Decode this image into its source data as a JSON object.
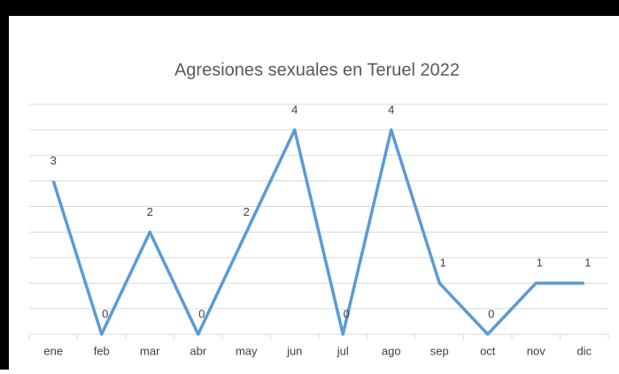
{
  "chart_data": {
    "type": "line",
    "title": "Agresiones sexuales en Teruel 2022",
    "categories": [
      "ene",
      "feb",
      "mar",
      "abr",
      "may",
      "jun",
      "jul",
      "ago",
      "sep",
      "oct",
      "nov",
      "dic"
    ],
    "series": [
      {
        "name": "Agresiones",
        "color": "#5b9bd5",
        "values": [
          3,
          0,
          2,
          0,
          2,
          4,
          0,
          4,
          1,
          0,
          1,
          1
        ]
      }
    ],
    "ylim": [
      0,
      4.5
    ],
    "yticks": [
      0,
      0.5,
      1,
      1.5,
      2,
      2.5,
      3,
      3.5,
      4,
      4.5
    ],
    "grid": true
  }
}
